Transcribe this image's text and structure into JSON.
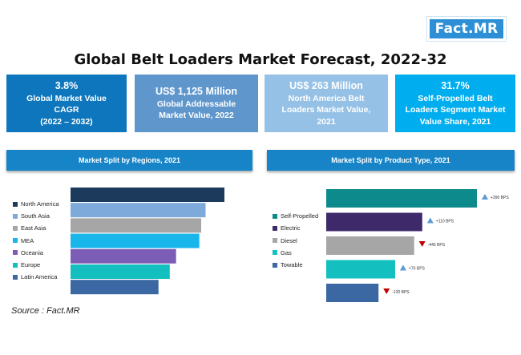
{
  "brand": {
    "logo_text": "Fact.MR"
  },
  "title": "Global Belt Loaders Market Forecast, 2022-32",
  "kpis": [
    {
      "value": "3.8%",
      "label": "Global Market Value CAGR",
      "extra": "(2022 – 2032)",
      "color": "#0e76bc"
    },
    {
      "value": "US$ 1,125 Million",
      "label": "Global Addressable Market Value, 2022",
      "extra": "",
      "color": "#5f97cd"
    },
    {
      "value": "US$ 263 Million",
      "label": "North America Belt Loaders Market Value, 2021",
      "extra": "",
      "color": "#96c1e6"
    },
    {
      "value": "31.7%",
      "label": "Self-Propelled Belt Loaders Segment Market Value Share, 2021",
      "extra": "",
      "color": "#00aeef"
    }
  ],
  "panels": {
    "regions_title": "Market Split by Regions, 2021",
    "product_title": "Market Split by Product Type, 2021"
  },
  "source": "Source : Fact.MR",
  "chart_data": [
    {
      "type": "bar",
      "orientation": "horizontal",
      "title": "Market Split by Regions, 2021",
      "categories": [
        "North America",
        "South Asia",
        "East Asia",
        "MEA",
        "Oceania",
        "Europe",
        "Latin America"
      ],
      "values": [
        24.5,
        21.5,
        20.8,
        20.5,
        16.8,
        15.8,
        14.0
      ],
      "colors": [
        "#1c3a5c",
        "#7eaadb",
        "#a6a6a6",
        "#19b6ec",
        "#7b5db5",
        "#13c0bf",
        "#3b67a2"
      ],
      "legend_position": "left",
      "axes_visible": false
    },
    {
      "type": "bar",
      "orientation": "horizontal",
      "title": "Market Split by Product Type, 2021",
      "categories": [
        "Self-Propelled",
        "Electric",
        "Diesel",
        "Gas",
        "Towable"
      ],
      "values": [
        31.7,
        20.2,
        18.5,
        14.5,
        11.0
      ],
      "colors": [
        "#0d8a8c",
        "#3e2a6b",
        "#a6a6a6",
        "#13c0bf",
        "#3b67a2"
      ],
      "bps_change": [
        "+390 BPS",
        "+110 BPS",
        "-445 BPS",
        "+70 BPS",
        "-130 BPS"
      ],
      "trend": [
        "up",
        "up",
        "down",
        "up",
        "down"
      ],
      "trend_colors": {
        "up": "#5b9bd5",
        "down": "#c00000"
      },
      "legend_position": "left",
      "axes_visible": false
    }
  ]
}
